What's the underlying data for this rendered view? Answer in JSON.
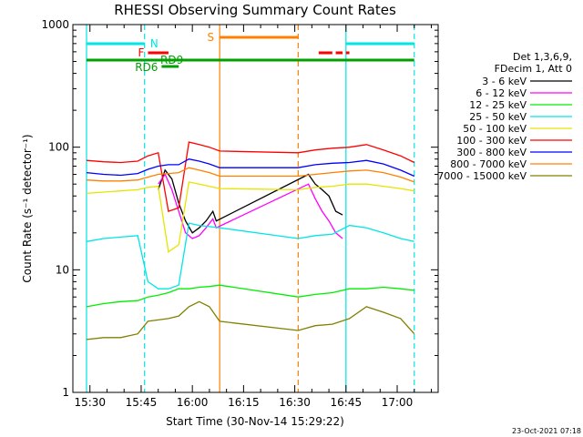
{
  "chart_data": {
    "type": "line",
    "title": "RHESSI Observing Summary Count Rates",
    "xlabel": "Start Time (30-Nov-14 15:29:22)",
    "ylabel": "Count Rate (s⁻¹ detector⁻¹)",
    "y_scale": "log",
    "ylim": [
      1,
      1000
    ],
    "y_ticks": [
      1,
      10,
      100,
      1000
    ],
    "y_tick_labels": [
      "1",
      "10",
      "100",
      "1000"
    ],
    "x_ticks": [
      "15:30",
      "15:45",
      "16:00",
      "16:15",
      "16:30",
      "16:45",
      "17:00"
    ],
    "legend_header": [
      "Det 1,3,6,9,",
      "FDecim 1, Att 0"
    ],
    "legend_position": "right",
    "flag_labels": {
      "N": "N",
      "F": "F",
      "S": "S",
      "RD9": "RD9",
      "RD6": "RD6"
    },
    "vlines": [
      {
        "t": "15:29",
        "color": "#00e5e5",
        "style": "solid"
      },
      {
        "t": "15:46",
        "color": "#00e5e5",
        "style": "dashed"
      },
      {
        "t": "16:08",
        "color": "#ff8000",
        "style": "solid"
      },
      {
        "t": "16:31",
        "color": "#ff8000",
        "style": "dashed"
      },
      {
        "t": "16:45",
        "color": "#00e5e5",
        "style": "solid"
      },
      {
        "t": "17:05",
        "color": "#00e5e5",
        "style": "dashed"
      }
    ],
    "series": [
      {
        "name": "3 - 6 keV",
        "color": "#000000",
        "x": [
          "15:50",
          "15:52",
          "15:54",
          "15:56",
          "15:58",
          "16:00",
          "16:02",
          "16:04",
          "16:06",
          "16:07",
          "16:34",
          "16:36",
          "16:38",
          "16:40",
          "16:42",
          "16:44"
        ],
        "y": [
          45,
          65,
          55,
          35,
          25,
          20,
          22,
          25,
          30,
          25,
          60,
          50,
          45,
          40,
          30,
          28
        ]
      },
      {
        "name": "6 - 12 keV",
        "color": "#ff00ff",
        "x": [
          "15:50",
          "15:52",
          "15:54",
          "15:56",
          "15:58",
          "16:00",
          "16:02",
          "16:04",
          "16:06",
          "16:07",
          "16:34",
          "16:36",
          "16:38",
          "16:40",
          "16:42",
          "16:44"
        ],
        "y": [
          50,
          60,
          45,
          30,
          20,
          18,
          19,
          22,
          26,
          22,
          50,
          38,
          30,
          25,
          20,
          18
        ]
      },
      {
        "name": "12 - 25 keV",
        "color": "#00ee00",
        "x": [
          "15:29",
          "15:34",
          "15:39",
          "15:44",
          "15:47",
          "15:50",
          "15:53",
          "15:56",
          "15:59",
          "16:02",
          "16:05",
          "16:08",
          "16:31",
          "16:36",
          "16:41",
          "16:46",
          "16:51",
          "16:56",
          "17:01",
          "17:05"
        ],
        "y": [
          5,
          5.3,
          5.5,
          5.6,
          6,
          6.2,
          6.5,
          7,
          7,
          7.2,
          7.3,
          7.5,
          6,
          6.3,
          6.5,
          7,
          7,
          7.2,
          7,
          6.8
        ]
      },
      {
        "name": "25 - 50 keV",
        "color": "#00e5e5",
        "x": [
          "15:29",
          "15:34",
          "15:39",
          "15:44",
          "15:47",
          "15:50",
          "15:53",
          "15:56",
          "15:59",
          "16:02",
          "16:05",
          "16:08",
          "16:31",
          "16:36",
          "16:41",
          "16:46",
          "16:51",
          "16:56",
          "17:01",
          "17:05"
        ],
        "y": [
          17,
          18,
          18.5,
          19,
          8,
          7,
          7,
          7.5,
          24,
          23,
          22.5,
          22,
          18,
          19,
          19.5,
          23,
          22,
          20,
          18,
          17
        ]
      },
      {
        "name": "50 - 100 keV",
        "color": "#e5e500",
        "x": [
          "15:29",
          "15:34",
          "15:39",
          "15:44",
          "15:47",
          "15:50",
          "15:53",
          "15:56",
          "15:59",
          "16:02",
          "16:05",
          "16:08",
          "16:31",
          "16:36",
          "16:41",
          "16:46",
          "16:51",
          "16:56",
          "17:01",
          "17:05"
        ],
        "y": [
          42,
          43,
          44,
          45,
          47,
          48,
          14,
          16,
          52,
          50,
          48,
          46,
          45,
          47,
          48,
          50,
          50,
          48,
          46,
          44
        ]
      },
      {
        "name": "100 - 300 keV",
        "color": "#ff0000",
        "x": [
          "15:29",
          "15:34",
          "15:39",
          "15:44",
          "15:47",
          "15:50",
          "15:53",
          "15:56",
          "15:59",
          "16:02",
          "16:05",
          "16:08",
          "16:31",
          "16:36",
          "16:41",
          "16:46",
          "16:51",
          "16:56",
          "17:01",
          "17:05"
        ],
        "y": [
          78,
          76,
          75,
          77,
          85,
          90,
          30,
          32,
          110,
          105,
          100,
          93,
          90,
          95,
          98,
          100,
          105,
          95,
          85,
          75
        ]
      },
      {
        "name": "300 - 800 keV",
        "color": "#0000ff",
        "x": [
          "15:29",
          "15:34",
          "15:39",
          "15:44",
          "15:47",
          "15:50",
          "15:53",
          "15:56",
          "15:59",
          "16:02",
          "16:05",
          "16:08",
          "16:31",
          "16:36",
          "16:41",
          "16:46",
          "16:51",
          "16:56",
          "17:01",
          "17:05"
        ],
        "y": [
          62,
          60,
          59,
          61,
          66,
          70,
          72,
          72,
          80,
          77,
          73,
          68,
          68,
          72,
          74,
          75,
          78,
          73,
          65,
          58
        ]
      },
      {
        "name": "800 - 7000 keV",
        "color": "#ff8000",
        "x": [
          "15:29",
          "15:34",
          "15:39",
          "15:44",
          "15:47",
          "15:50",
          "15:53",
          "15:56",
          "15:59",
          "16:02",
          "16:05",
          "16:08",
          "16:31",
          "16:36",
          "16:41",
          "16:46",
          "16:51",
          "16:56",
          "17:01",
          "17:05"
        ],
        "y": [
          54,
          53,
          53,
          54,
          57,
          60,
          61,
          62,
          68,
          65,
          62,
          58,
          58,
          60,
          62,
          64,
          65,
          62,
          57,
          52
        ]
      },
      {
        "name": "7000 - 15000 keV",
        "color": "#808000",
        "x": [
          "15:29",
          "15:34",
          "15:39",
          "15:44",
          "15:47",
          "15:50",
          "15:53",
          "15:56",
          "15:59",
          "16:02",
          "16:05",
          "16:08",
          "16:31",
          "16:36",
          "16:41",
          "16:46",
          "16:51",
          "16:56",
          "17:01",
          "17:05"
        ],
        "y": [
          2.7,
          2.8,
          2.8,
          3,
          3.8,
          3.9,
          4,
          4.2,
          5,
          5.5,
          5,
          3.8,
          3.2,
          3.5,
          3.6,
          4,
          5,
          4.5,
          4,
          3
        ]
      }
    ],
    "flags": [
      {
        "label": "N",
        "color": "#00e5e5",
        "segments": [
          [
            "15:29",
            "15:46"
          ],
          [
            "16:45",
            "17:05"
          ]
        ]
      },
      {
        "label": "S",
        "color": "#ff8000",
        "segments": [
          [
            "16:08",
            "16:31"
          ]
        ]
      },
      {
        "label": "F",
        "color": "#ff0000",
        "segments": [
          [
            "15:47",
            "15:53"
          ],
          [
            "16:37",
            "16:41"
          ],
          [
            "16:42",
            "16:44"
          ],
          [
            "16:45",
            "16:46"
          ]
        ]
      },
      {
        "label": "RD9",
        "color": "#00a000",
        "segments": [
          [
            "15:29",
            "17:05"
          ]
        ]
      },
      {
        "label": "RD6",
        "color": "#00a000",
        "segments": [
          [
            "15:51",
            "15:56"
          ]
        ]
      }
    ]
  },
  "footer": {
    "timestamp": "23-Oct-2021 07:18"
  }
}
